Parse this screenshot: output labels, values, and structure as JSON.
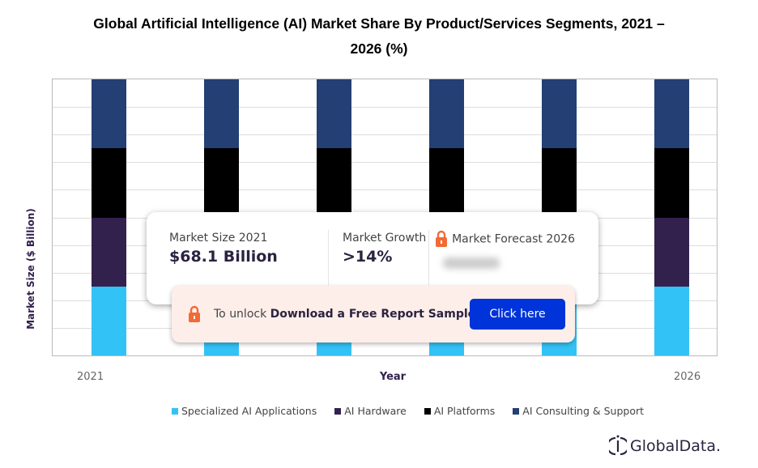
{
  "chart_data": {
    "type": "bar",
    "stacked": true,
    "title": "Global Artificial Intelligence (AI) Market Share By Product/Services Segments, 2021 – 2026 (%)",
    "title_lines": [
      "Global Artificial Intelligence (AI) Market Share By Product/Services Segments, 2021 –",
      "2026 (%)"
    ],
    "xlabel": "Year",
    "ylabel": "Market Size ($ Billion)",
    "x_tick_labels": [
      "2021",
      "",
      "",
      "",
      "",
      "2026"
    ],
    "ylim": [
      0,
      100
    ],
    "grid": true,
    "legend_placement": "bottom",
    "series": [
      {
        "name": "Specialized AI Applications",
        "color": "#33c2f5",
        "values": [
          25,
          25,
          25,
          25,
          25,
          25
        ]
      },
      {
        "name": "AI Hardware",
        "color": "#33214d",
        "values": [
          25,
          25,
          25,
          25,
          25,
          25
        ]
      },
      {
        "name": "AI Platforms",
        "color": "#000000",
        "values": [
          25,
          25,
          25,
          25,
          25,
          25
        ]
      },
      {
        "name": "AI Consulting & Support",
        "color": "#233f73",
        "values": [
          25,
          25,
          25,
          25,
          25,
          25
        ]
      }
    ]
  },
  "overlay": {
    "market_size_label": "Market Size 2021",
    "market_size_value": "$68.1 Billion",
    "growth_label": "Market Growth",
    "growth_value": ">14%",
    "forecast_label": "Market Forecast 2026",
    "unlock_prefix": "To unlock ",
    "unlock_bold": "Download a Free Report Sample",
    "button_label": "Click here",
    "lock_color": "#f26a35",
    "button_color": "#0033d9"
  },
  "logo": {
    "text": "GlobalData."
  }
}
